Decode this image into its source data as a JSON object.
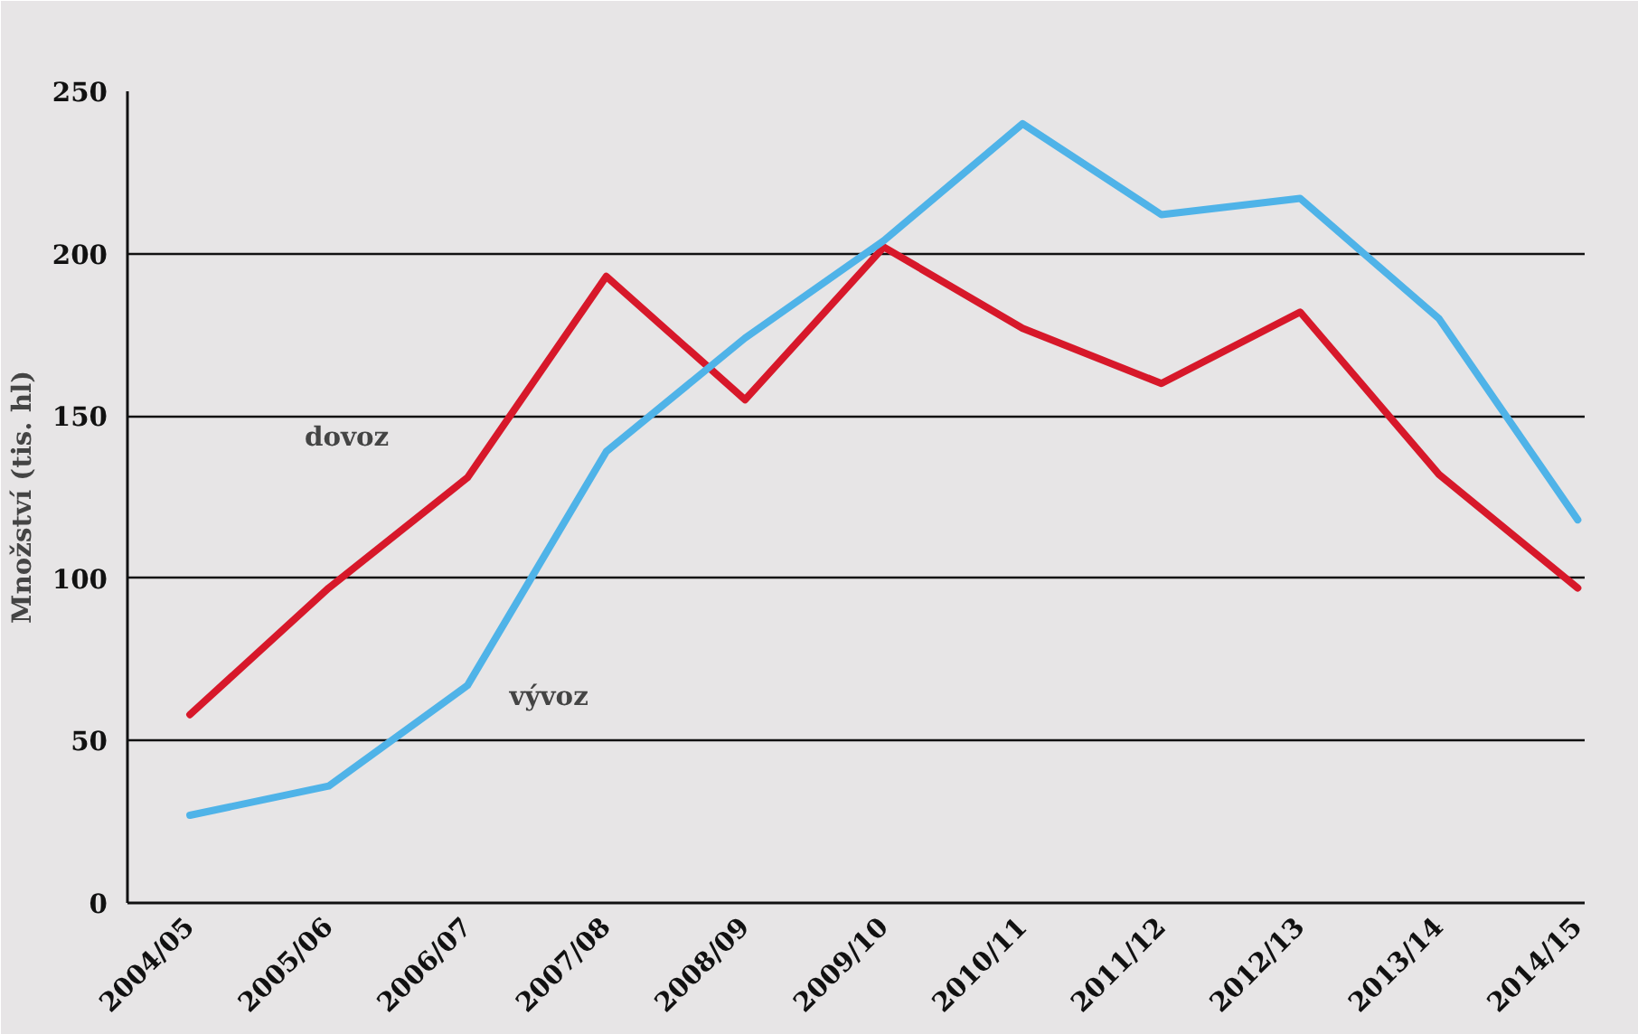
{
  "chart_data": {
    "type": "line",
    "ylabel": "Množství (tis. hl)",
    "categories": [
      "2004/05",
      "2005/06",
      "2006/07",
      "2007/08",
      "2008/09",
      "2009/10",
      "2010/11",
      "2011/12",
      "2012/13",
      "2013/14",
      "2014/15"
    ],
    "series": [
      {
        "name": "dovoz",
        "color": "#d7182a",
        "values": [
          58,
          97,
          131,
          193,
          155,
          202,
          177,
          160,
          182,
          132,
          97
        ]
      },
      {
        "name": "vývoz",
        "color": "#4fb3e8",
        "values": [
          27,
          36,
          67,
          139,
          174,
          204,
          240,
          212,
          217,
          180,
          118
        ]
      }
    ],
    "ylim": [
      0,
      250
    ],
    "yticks": [
      0,
      50,
      100,
      150,
      200,
      250
    ],
    "grid": "y",
    "marker": "none",
    "line_style": "solid"
  }
}
